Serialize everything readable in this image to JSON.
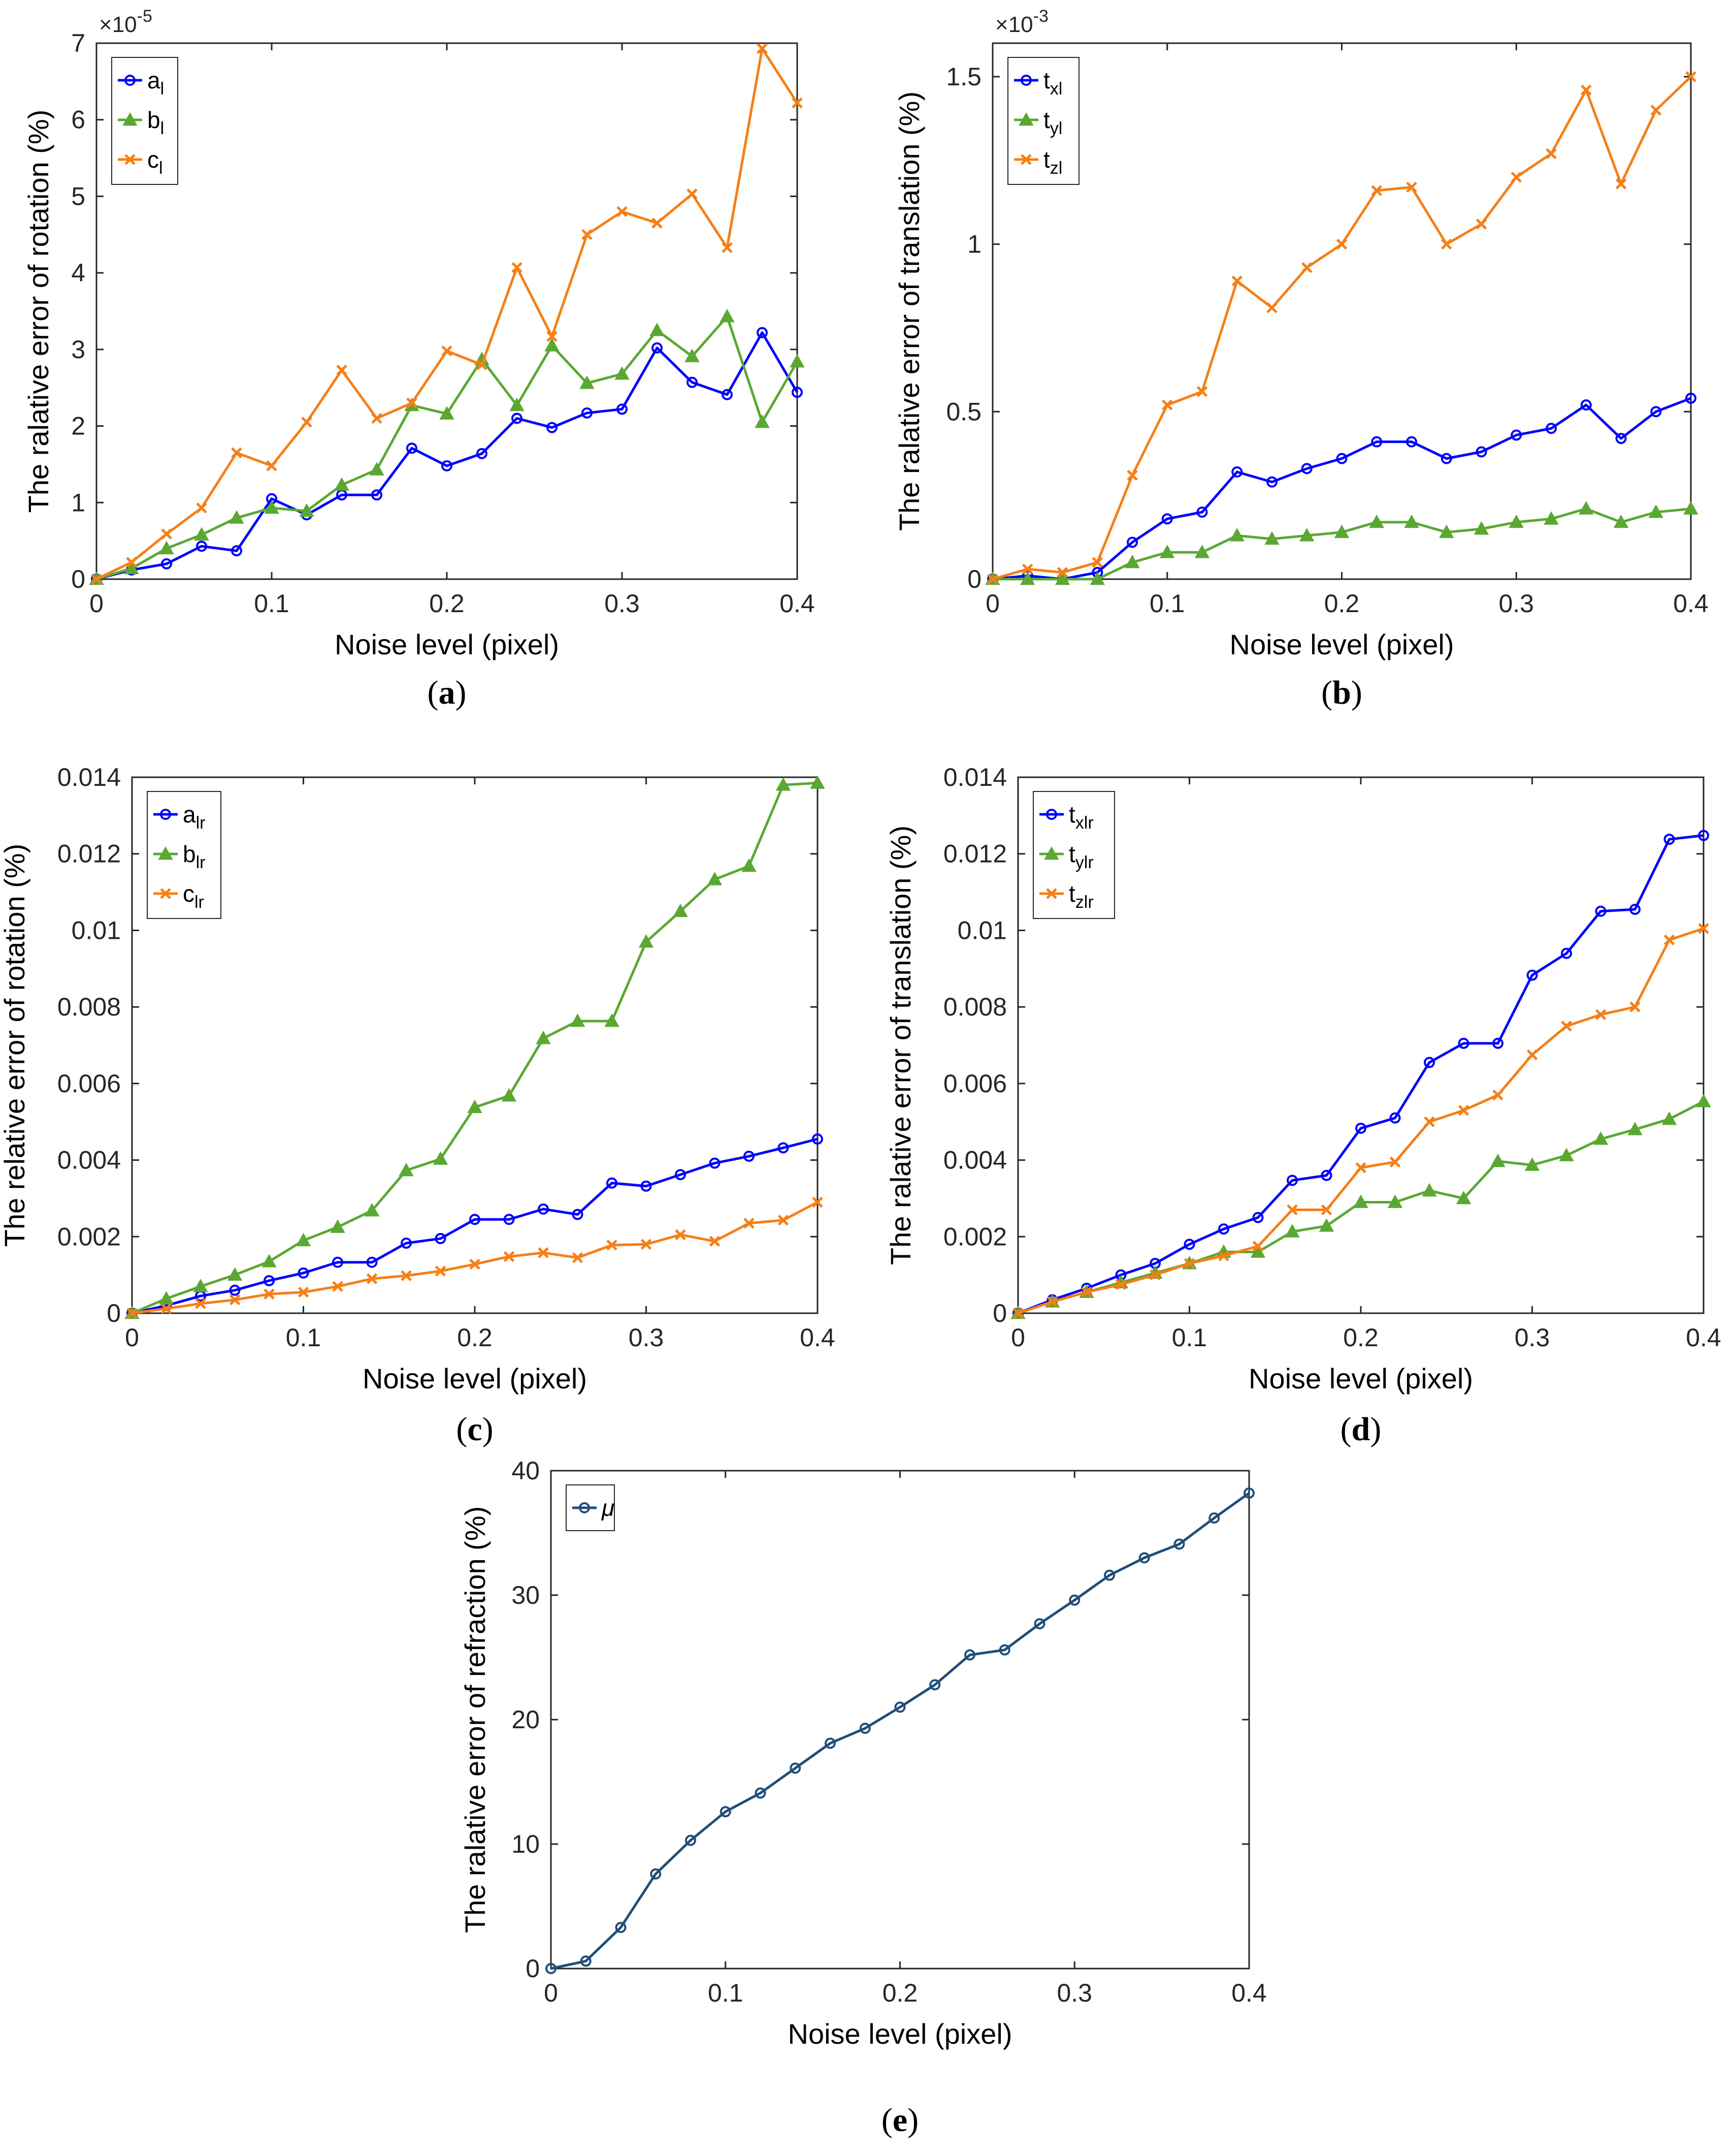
{
  "colors": {
    "blue": "#0000ff",
    "green": "#5aa832",
    "orange": "#f57f17",
    "navy": "#1f4e79",
    "axis": "#262626"
  },
  "chart_data": [
    {
      "id": "a",
      "type": "line",
      "panel_label": "a",
      "xlabel": "Noise level (pixel)",
      "ylabel": "The ralative error of rotation (%)",
      "exponent_base": "×10",
      "exponent_power": "-5",
      "xlim": [
        0,
        0.4
      ],
      "ylim": [
        0,
        7
      ],
      "x_ticks": [
        0,
        0.1,
        0.2,
        0.3,
        0.4
      ],
      "x_tick_labels": [
        "0",
        "0.1",
        "0.2",
        "0.3",
        "0.4"
      ],
      "y_ticks": [
        0,
        1,
        2,
        3,
        4,
        5,
        6,
        7
      ],
      "y_tick_labels": [
        "0",
        "1",
        "2",
        "3",
        "4",
        "5",
        "6",
        "7"
      ],
      "x": [
        0,
        0.02,
        0.04,
        0.06,
        0.08,
        0.1,
        0.12,
        0.14,
        0.16,
        0.18,
        0.2,
        0.22,
        0.24,
        0.26,
        0.28,
        0.3,
        0.32,
        0.34,
        0.36,
        0.38,
        0.4
      ],
      "legend_position": "top-left",
      "series": [
        {
          "name": "a",
          "sub": "l",
          "color": "blue",
          "marker": "circle",
          "values": [
            0,
            0.12,
            0.2,
            0.43,
            0.37,
            1.05,
            0.84,
            1.1,
            1.1,
            1.71,
            1.48,
            1.64,
            2.1,
            1.98,
            2.17,
            2.22,
            3.02,
            2.57,
            2.41,
            3.22,
            2.44
          ]
        },
        {
          "name": "b",
          "sub": "l",
          "color": "green",
          "marker": "triangle",
          "values": [
            0,
            0.14,
            0.4,
            0.58,
            0.8,
            0.93,
            0.89,
            1.23,
            1.43,
            2.27,
            2.16,
            2.87,
            2.27,
            3.05,
            2.56,
            2.68,
            3.25,
            2.91,
            3.43,
            2.05,
            2.84
          ]
        },
        {
          "name": "c",
          "sub": "l",
          "color": "orange",
          "marker": "x",
          "values": [
            0,
            0.22,
            0.59,
            0.93,
            1.65,
            1.48,
            2.05,
            2.73,
            2.1,
            2.3,
            2.98,
            2.8,
            4.07,
            3.17,
            4.5,
            4.8,
            4.65,
            5.03,
            4.33,
            6.93,
            6.22
          ]
        }
      ]
    },
    {
      "id": "b",
      "type": "line",
      "panel_label": "b",
      "xlabel": "Noise level (pixel)",
      "ylabel": "The ralative error of translation (%)",
      "exponent_base": "×10",
      "exponent_power": "-3",
      "xlim": [
        0,
        0.4
      ],
      "ylim": [
        0,
        1.6
      ],
      "x_ticks": [
        0,
        0.1,
        0.2,
        0.3,
        0.4
      ],
      "x_tick_labels": [
        "0",
        "0.1",
        "0.2",
        "0.3",
        "0.4"
      ],
      "y_ticks": [
        0,
        0.5,
        1,
        1.5
      ],
      "y_tick_labels": [
        "0",
        "0.5",
        "1",
        "1.5"
      ],
      "x": [
        0,
        0.02,
        0.04,
        0.06,
        0.08,
        0.1,
        0.12,
        0.14,
        0.16,
        0.18,
        0.2,
        0.22,
        0.24,
        0.26,
        0.28,
        0.3,
        0.32,
        0.34,
        0.36,
        0.38,
        0.4
      ],
      "legend_position": "top-left",
      "series": [
        {
          "name": "t",
          "sub": "xl",
          "color": "blue",
          "marker": "circle",
          "values": [
            0,
            0.01,
            0.0,
            0.02,
            0.11,
            0.18,
            0.2,
            0.32,
            0.29,
            0.33,
            0.36,
            0.41,
            0.41,
            0.36,
            0.38,
            0.43,
            0.45,
            0.52,
            0.42,
            0.5,
            0.54
          ]
        },
        {
          "name": "t",
          "sub": "yl",
          "color": "green",
          "marker": "triangle",
          "values": [
            0,
            0.0,
            0.0,
            0.0,
            0.05,
            0.08,
            0.08,
            0.13,
            0.12,
            0.13,
            0.14,
            0.17,
            0.17,
            0.14,
            0.15,
            0.17,
            0.18,
            0.21,
            0.17,
            0.2,
            0.21
          ]
        },
        {
          "name": "t",
          "sub": "zl",
          "color": "orange",
          "marker": "x",
          "values": [
            0,
            0.03,
            0.02,
            0.05,
            0.31,
            0.52,
            0.56,
            0.89,
            0.81,
            0.93,
            1.0,
            1.16,
            1.17,
            1.0,
            1.06,
            1.2,
            1.27,
            1.46,
            1.18,
            1.4,
            1.5
          ]
        }
      ]
    },
    {
      "id": "c",
      "type": "line",
      "panel_label": "c",
      "xlabel": "Noise level (pixel)",
      "ylabel": "The relative error of rotation (%)",
      "xlim": [
        0,
        0.4
      ],
      "ylim": [
        0,
        0.014
      ],
      "x_ticks": [
        0,
        0.1,
        0.2,
        0.3,
        0.4
      ],
      "x_tick_labels": [
        "0",
        "0.1",
        "0.2",
        "0.3",
        "0.4"
      ],
      "y_ticks": [
        0,
        0.002,
        0.004,
        0.006,
        0.008,
        0.01,
        0.012,
        0.014
      ],
      "y_tick_labels": [
        "0",
        "0.002",
        "0.004",
        "0.006",
        "0.008",
        "0.01",
        "0.012",
        "0.014"
      ],
      "x": [
        0,
        0.02,
        0.04,
        0.06,
        0.08,
        0.1,
        0.12,
        0.14,
        0.16,
        0.18,
        0.2,
        0.22,
        0.24,
        0.26,
        0.28,
        0.3,
        0.32,
        0.34,
        0.36,
        0.38,
        0.4
      ],
      "legend_position": "top-left",
      "series": [
        {
          "name": "a",
          "sub": "lr",
          "color": "blue",
          "marker": "circle",
          "values": [
            0,
            0.0002,
            0.00045,
            0.0006,
            0.00085,
            0.00105,
            0.00133,
            0.00133,
            0.00183,
            0.00195,
            0.00245,
            0.00245,
            0.00272,
            0.00258,
            0.0034,
            0.00332,
            0.00362,
            0.00392,
            0.0041,
            0.00432,
            0.00455
          ]
        },
        {
          "name": "b",
          "sub": "lr",
          "color": "green",
          "marker": "triangle",
          "values": [
            0,
            0.00038,
            0.0007,
            0.001,
            0.00135,
            0.0019,
            0.00225,
            0.00268,
            0.00373,
            0.00403,
            0.00538,
            0.00568,
            0.00718,
            0.00763,
            0.00763,
            0.0097,
            0.0105,
            0.01133,
            0.01168,
            0.0138,
            0.01385
          ]
        },
        {
          "name": "c",
          "sub": "lr",
          "color": "orange",
          "marker": "x",
          "values": [
            0,
            0.00012,
            0.00025,
            0.00035,
            0.0005,
            0.00055,
            0.0007,
            0.0009,
            0.00098,
            0.0011,
            0.00128,
            0.00148,
            0.00158,
            0.00145,
            0.00178,
            0.0018,
            0.00205,
            0.00188,
            0.00235,
            0.00243,
            0.0029
          ]
        }
      ]
    },
    {
      "id": "d",
      "type": "line",
      "panel_label": "d",
      "xlabel": "Noise level (pixel)",
      "ylabel": "The ralative error of translation (%)",
      "xlim": [
        0,
        0.4
      ],
      "ylim": [
        0,
        0.014
      ],
      "x_ticks": [
        0,
        0.1,
        0.2,
        0.3,
        0.4
      ],
      "x_tick_labels": [
        "0",
        "0.1",
        "0.2",
        "0.3",
        "0.4"
      ],
      "y_ticks": [
        0,
        0.002,
        0.004,
        0.006,
        0.008,
        0.01,
        0.012,
        0.014
      ],
      "y_tick_labels": [
        "0",
        "0.002",
        "0.004",
        "0.006",
        "0.008",
        "0.01",
        "0.012",
        "0.014"
      ],
      "x": [
        0,
        0.02,
        0.04,
        0.06,
        0.08,
        0.1,
        0.12,
        0.14,
        0.16,
        0.18,
        0.2,
        0.22,
        0.24,
        0.26,
        0.28,
        0.3,
        0.32,
        0.34,
        0.36,
        0.38,
        0.4
      ],
      "legend_position": "top-left",
      "series": [
        {
          "name": "t",
          "sub": "xlr",
          "color": "blue",
          "marker": "circle",
          "values": [
            0,
            0.00035,
            0.00065,
            0.001,
            0.0013,
            0.0018,
            0.0022,
            0.0025,
            0.00347,
            0.0036,
            0.00483,
            0.0051,
            0.00655,
            0.00705,
            0.00705,
            0.00883,
            0.0094,
            0.0105,
            0.01055,
            0.01238,
            0.01248
          ]
        },
        {
          "name": "t",
          "sub": "ylr",
          "color": "green",
          "marker": "triangle",
          "values": [
            0,
            0.0003,
            0.00055,
            0.0008,
            0.00105,
            0.0013,
            0.0016,
            0.0016,
            0.00213,
            0.00228,
            0.0029,
            0.0029,
            0.0032,
            0.003,
            0.00397,
            0.00387,
            0.00412,
            0.00455,
            0.0048,
            0.00507,
            0.00553
          ]
        },
        {
          "name": "t",
          "sub": "zlr",
          "color": "orange",
          "marker": "x",
          "values": [
            0,
            0.0003,
            0.00055,
            0.00075,
            0.001,
            0.0013,
            0.0015,
            0.00175,
            0.0027,
            0.0027,
            0.0038,
            0.00395,
            0.005,
            0.0053,
            0.0057,
            0.00675,
            0.0075,
            0.0078,
            0.008,
            0.00975,
            0.01005
          ]
        }
      ]
    },
    {
      "id": "e",
      "type": "line",
      "panel_label": "e",
      "xlabel": "Noise level (pixel)",
      "ylabel": "The ralative error of refraction (%)",
      "xlim": [
        0,
        0.4
      ],
      "ylim": [
        0,
        40
      ],
      "x_ticks": [
        0,
        0.1,
        0.2,
        0.3,
        0.4
      ],
      "x_tick_labels": [
        "0",
        "0.1",
        "0.2",
        "0.3",
        "0.4"
      ],
      "y_ticks": [
        0,
        10,
        20,
        30,
        40
      ],
      "y_tick_labels": [
        "0",
        "10",
        "20",
        "30",
        "40"
      ],
      "x": [
        0,
        0.02,
        0.04,
        0.06,
        0.08,
        0.1,
        0.12,
        0.14,
        0.16,
        0.18,
        0.2,
        0.22,
        0.24,
        0.26,
        0.28,
        0.3,
        0.32,
        0.34,
        0.36,
        0.38,
        0.4
      ],
      "legend_position": "top-left",
      "series": [
        {
          "name": "μ",
          "sub": "",
          "color": "navy",
          "marker": "circle",
          "values": [
            0,
            0.6,
            3.3,
            7.6,
            10.3,
            12.6,
            14.1,
            16.1,
            18.1,
            19.3,
            21.0,
            22.8,
            25.2,
            25.6,
            27.7,
            29.6,
            31.6,
            33.0,
            34.1,
            36.2,
            38.2
          ]
        }
      ]
    }
  ]
}
